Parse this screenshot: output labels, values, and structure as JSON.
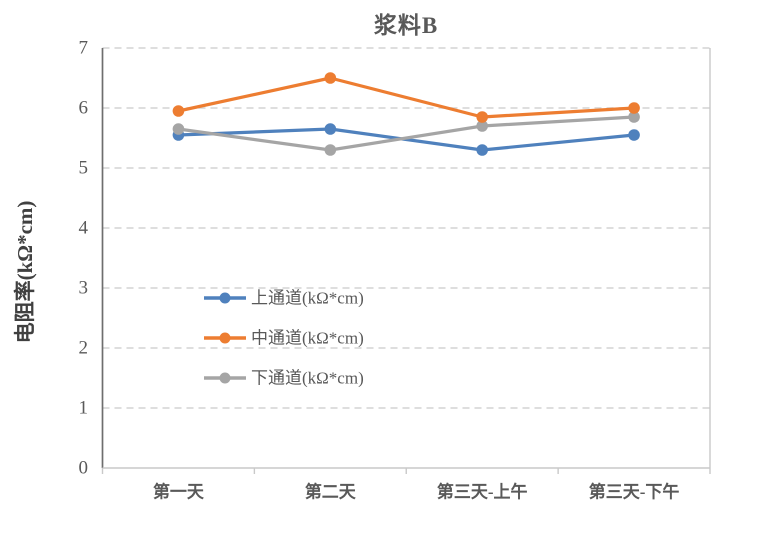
{
  "chart_data": {
    "type": "line",
    "title": "浆料B",
    "ylabel": "电阻率(kΩ*cm)",
    "xlabel": "",
    "categories": [
      "第一天",
      "第二天",
      "第三天-上午",
      "第三天-下午"
    ],
    "series": [
      {
        "name": "上通道(kΩ*cm)",
        "color": "#4f81bd",
        "values": [
          5.55,
          5.65,
          5.3,
          5.55
        ]
      },
      {
        "name": "中通道(kΩ*cm)",
        "color": "#ed7d31",
        "values": [
          5.95,
          6.5,
          5.85,
          6.0
        ]
      },
      {
        "name": "下通道(kΩ*cm)",
        "color": "#a5a5a5",
        "values": [
          5.65,
          5.3,
          5.7,
          5.85
        ]
      }
    ],
    "ylim": [
      0,
      7
    ],
    "ytick_step": 1,
    "yticks": [
      "0",
      "1",
      "2",
      "3",
      "4",
      "5",
      "6",
      "7"
    ],
    "grid": "horizontal-dashed",
    "legend_position": "inside-left",
    "marker": "circle",
    "colors": {
      "gridline": "#d9d9d9",
      "axis_left": "#6e6e6e",
      "axis_bottom": "#c9c9c9",
      "border_right": "#c9c9c9",
      "text": "#595959"
    }
  }
}
